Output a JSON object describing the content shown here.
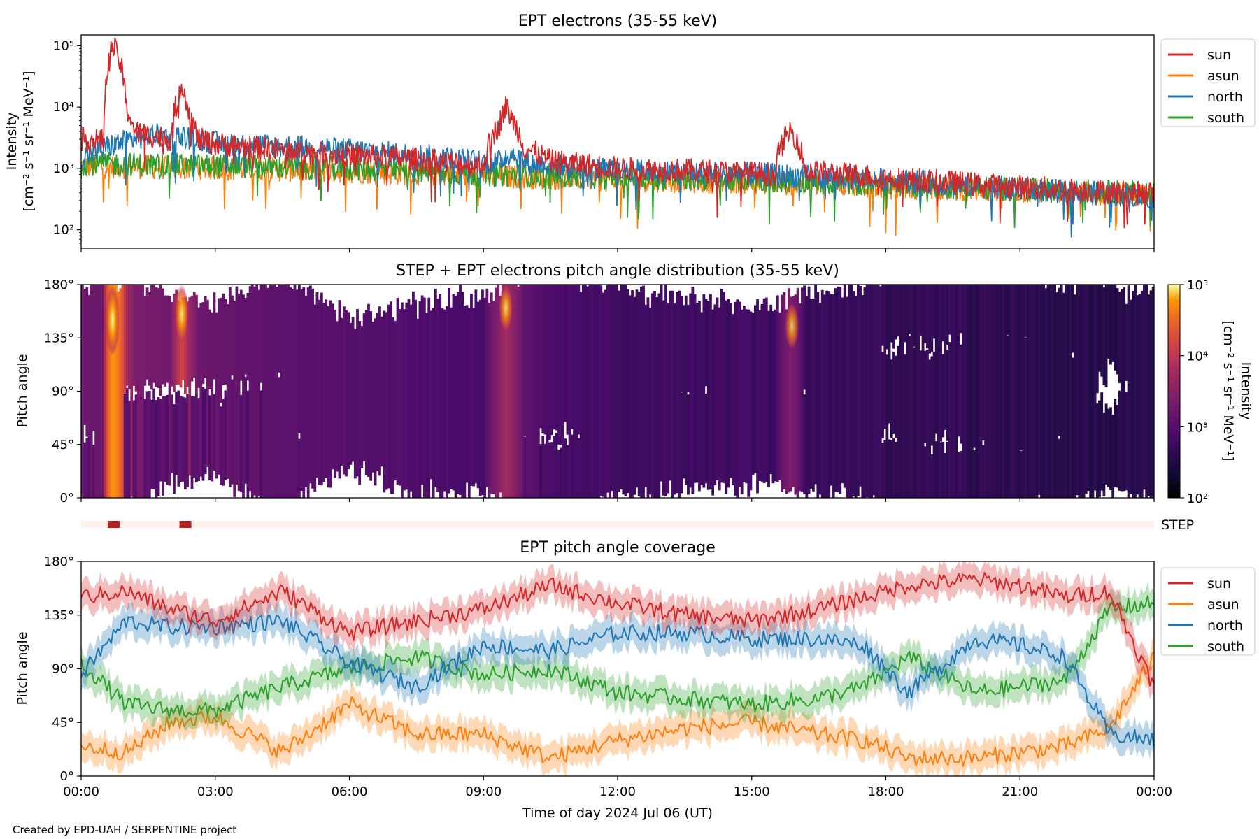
{
  "chart_data": [
    {
      "type": "line",
      "title": "EPT electrons (35-55 keV)",
      "ylabel": "Intensity",
      "yunit": "[cm⁻² s⁻¹ sr⁻¹ MeV⁻¹]",
      "yscale": "log",
      "ylim": [
        50,
        150000
      ],
      "yticks": [
        {
          "value": 100,
          "label": "10²"
        },
        {
          "value": 1000,
          "label": "10³"
        },
        {
          "value": 10000,
          "label": "10⁴"
        },
        {
          "value": 100000,
          "label": "10⁵"
        }
      ],
      "xlim": [
        "00:00",
        "24:00"
      ],
      "legend_position": "outside-right-top",
      "series": [
        {
          "name": "sun",
          "color": "#d62728",
          "hours": [
            0,
            0.5,
            0.6,
            0.7,
            0.85,
            1.0,
            1.2,
            1.5,
            2.0,
            2.15,
            2.25,
            2.4,
            2.6,
            3.0,
            5.0,
            7.0,
            9.0,
            9.35,
            9.5,
            9.65,
            9.9,
            10.5,
            12.0,
            14.0,
            15.5,
            15.85,
            15.95,
            16.2,
            18.0,
            20.0,
            22.0,
            24.0
          ],
          "values": [
            3000,
            2800,
            40000,
            100000,
            60000,
            10000,
            4000,
            3500,
            3000,
            12000,
            25000,
            8000,
            3000,
            2500,
            1800,
            1500,
            1100,
            5000,
            10000,
            6000,
            2200,
            1300,
            1000,
            900,
            800,
            4000,
            3500,
            900,
            700,
            550,
            450,
            380
          ]
        },
        {
          "name": "asun",
          "color": "#ff7f0e",
          "hours": [
            0,
            3,
            6,
            9,
            12,
            15,
            18,
            21,
            24
          ],
          "values": [
            1100,
            1000,
            900,
            750,
            650,
            600,
            500,
            420,
            360
          ]
        },
        {
          "name": "north",
          "color": "#1f77b4",
          "hours": [
            0,
            0.8,
            1.5,
            2.5,
            3,
            6,
            9.3,
            9.6,
            10,
            12,
            15,
            18,
            21,
            24
          ],
          "values": [
            1500,
            2500,
            3500,
            3200,
            2600,
            2000,
            1200,
            1800,
            1200,
            900,
            800,
            650,
            450,
            350
          ]
        },
        {
          "name": "south",
          "color": "#2ca02c",
          "hours": [
            0,
            3,
            6,
            9,
            12,
            15,
            18,
            21,
            24
          ],
          "values": [
            1200,
            1100,
            1000,
            800,
            700,
            650,
            550,
            450,
            400
          ]
        }
      ]
    },
    {
      "type": "heatmap",
      "title": "STEP + EPT electrons pitch angle distribution (35-55 keV)",
      "ylabel": "Pitch angle",
      "ylim": [
        0,
        180
      ],
      "yticks": [
        "0°",
        "45°",
        "90°",
        "135°",
        "180°"
      ],
      "colorbar": {
        "label": "Intensity",
        "unit": "[cm⁻² s⁻¹ sr⁻¹ MeV⁻¹]",
        "scale": "log",
        "range": [
          100,
          100000
        ],
        "ticks": [
          "10²",
          "10³",
          "10⁴",
          "10⁵"
        ],
        "colormap": "inferno"
      },
      "enhancements": [
        {
          "hour": 0.7,
          "pitch_range": [
            120,
            180
          ],
          "intensity": 100000
        },
        {
          "hour": 2.25,
          "pitch_range": [
            130,
            180
          ],
          "intensity": 25000
        },
        {
          "hour": 9.5,
          "pitch_range": [
            140,
            180
          ],
          "intensity": 10000
        },
        {
          "hour": 15.9,
          "pitch_range": [
            125,
            165
          ],
          "intensity": 4000
        }
      ]
    },
    {
      "type": "bar",
      "label": "STEP",
      "markers_hours": [
        0.6,
        2.2
      ],
      "marker_color": "#b22222",
      "background_color": "#fff1ec"
    },
    {
      "type": "area",
      "title": "EPT pitch angle coverage",
      "ylabel": "Pitch angle",
      "ylim": [
        0,
        180
      ],
      "yticks": [
        "0°",
        "45°",
        "90°",
        "135°",
        "180°"
      ],
      "legend_position": "outside-right-top",
      "series": [
        {
          "name": "sun",
          "color": "#d62728",
          "hours": [
            0,
            1,
            2,
            3,
            4.5,
            6,
            7.5,
            9,
            10.5,
            12,
            13.5,
            15,
            16.5,
            17.5,
            18.5,
            20,
            21,
            22,
            23,
            24
          ],
          "values": [
            150,
            155,
            140,
            130,
            155,
            120,
            130,
            140,
            160,
            145,
            135,
            130,
            140,
            150,
            160,
            165,
            160,
            150,
            155,
            75
          ]
        },
        {
          "name": "asun",
          "color": "#ff7f0e",
          "hours": [
            0,
            1,
            2,
            3,
            4.5,
            6,
            7.5,
            9,
            10.5,
            12,
            13.5,
            15,
            16.5,
            17.5,
            18.5,
            20,
            21,
            22,
            23,
            24
          ],
          "values": [
            25,
            20,
            45,
            50,
            20,
            60,
            35,
            35,
            15,
            30,
            40,
            45,
            35,
            30,
            15,
            15,
            20,
            25,
            40,
            100
          ]
        },
        {
          "name": "north",
          "color": "#1f77b4",
          "hours": [
            0,
            1,
            2,
            3,
            4.5,
            6,
            7.5,
            9,
            10.5,
            12,
            13.5,
            15,
            16.5,
            17.5,
            18.5,
            20,
            21,
            22,
            23,
            24
          ],
          "values": [
            85,
            130,
            125,
            125,
            130,
            95,
            75,
            110,
            105,
            120,
            120,
            115,
            115,
            110,
            70,
            115,
            110,
            100,
            35,
            30
          ]
        },
        {
          "name": "south",
          "color": "#2ca02c",
          "hours": [
            0,
            1,
            2,
            3,
            4.5,
            6,
            7.5,
            9,
            10.5,
            12,
            13.5,
            15,
            16.5,
            17.5,
            18.5,
            20,
            21,
            22,
            23,
            24
          ],
          "values": [
            95,
            60,
            55,
            55,
            75,
            90,
            100,
            85,
            90,
            70,
            65,
            60,
            65,
            75,
            100,
            70,
            75,
            80,
            140,
            145
          ]
        }
      ],
      "band_halfwidth_deg": 12
    }
  ],
  "xaxis": {
    "label": "Time of day 2024 Jul 06 (UT)",
    "ticks": [
      "00:00",
      "03:00",
      "06:00",
      "09:00",
      "12:00",
      "15:00",
      "18:00",
      "21:00",
      "00:00"
    ]
  },
  "credit": "Created by EPD-UAH / SERPENTINE project",
  "text": {
    "p1_title": "EPT electrons (35-55 keV)",
    "p2_title": "STEP + EPT electrons pitch angle distribution (35-55 keV)",
    "p4_title": "EPT pitch angle coverage",
    "ylabel_intensity": "Intensity",
    "ylabel_unit": "[cm⁻² s⁻¹ sr⁻¹ MeV⁻¹]",
    "ylabel_pitch": "Pitch angle",
    "cbar_label": "Intensity",
    "cbar_unit": "[cm⁻² s⁻¹ sr⁻¹ MeV⁻¹]",
    "step_label": "STEP",
    "xlabel": "Time of day 2024 Jul 06 (UT)",
    "credit": "Created by EPD-UAH / SERPENTINE project"
  }
}
